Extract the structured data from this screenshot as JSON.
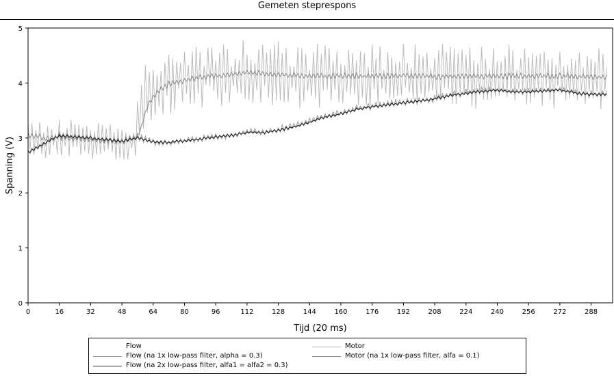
{
  "window": {
    "title": "Gemeten steprespons"
  },
  "chart_data": {
    "type": "line",
    "title": "Gemeten steprespons",
    "xlabel": "Tijd (20 ms)",
    "ylabel": "Spanning (V)",
    "xlim": [
      0,
      299
    ],
    "ylim": [
      0,
      5
    ],
    "xticks": [
      0,
      16,
      32,
      48,
      64,
      80,
      96,
      112,
      128,
      144,
      160,
      176,
      192,
      208,
      224,
      240,
      256,
      272,
      288
    ],
    "yticks": [
      0,
      1,
      2,
      3,
      4,
      5
    ],
    "grid": false,
    "legend_position": "bottom",
    "series": [
      {
        "name": "Flow",
        "color": "#ffffff",
        "stroke_width": 1,
        "x": [
          0,
          297
        ],
        "y": [
          3.0,
          3.0
        ]
      },
      {
        "name": "Flow (na 1x low-pass filter, alpha = 0.3)",
        "color": "#999999",
        "stroke_width": 1,
        "x": [
          0,
          8,
          16,
          24,
          32,
          40,
          48,
          56,
          64,
          72,
          80,
          88,
          96,
          104,
          112,
          120,
          128,
          136,
          144,
          152,
          160,
          168,
          176,
          184,
          192,
          200,
          208,
          216,
          224,
          232,
          240,
          248,
          256,
          264,
          272,
          280,
          288,
          296
        ],
        "y": [
          2.72,
          2.88,
          3.05,
          3.02,
          3.0,
          2.97,
          2.95,
          3.02,
          2.93,
          2.9,
          2.95,
          2.98,
          3.02,
          3.05,
          3.12,
          3.1,
          3.15,
          3.22,
          3.3,
          3.4,
          3.45,
          3.55,
          3.58,
          3.62,
          3.65,
          3.68,
          3.72,
          3.78,
          3.82,
          3.86,
          3.88,
          3.83,
          3.85,
          3.87,
          3.88,
          3.82,
          3.8,
          3.8
        ],
        "noise": 0.05
      },
      {
        "name": "Flow (na 2x low-pass filter, alfa1 = alfa2 = 0.3)",
        "color": "#222222",
        "stroke_width": 1.2,
        "x": [
          0,
          8,
          16,
          24,
          32,
          40,
          48,
          56,
          64,
          72,
          80,
          88,
          96,
          104,
          112,
          120,
          128,
          136,
          144,
          152,
          160,
          168,
          176,
          184,
          192,
          200,
          208,
          216,
          224,
          232,
          240,
          248,
          256,
          264,
          272,
          280,
          288,
          296
        ],
        "y": [
          2.73,
          2.9,
          3.04,
          3.02,
          3.0,
          2.97,
          2.94,
          3.0,
          2.93,
          2.92,
          2.95,
          2.98,
          3.02,
          3.05,
          3.1,
          3.1,
          3.14,
          3.2,
          3.28,
          3.38,
          3.44,
          3.52,
          3.57,
          3.6,
          3.64,
          3.67,
          3.71,
          3.77,
          3.81,
          3.85,
          3.87,
          3.84,
          3.84,
          3.86,
          3.87,
          3.82,
          3.79,
          3.79
        ],
        "noise": 0.02
      },
      {
        "name": "Motor",
        "color": "#bbbbbb",
        "stroke_width": 1,
        "x": [
          0,
          8,
          16,
          24,
          32,
          40,
          48,
          55,
          58,
          62,
          70,
          80,
          96,
          112,
          128,
          144,
          160,
          176,
          192,
          208,
          224,
          240,
          256,
          272,
          288,
          296
        ],
        "y": [
          3.0,
          2.95,
          2.98,
          3.0,
          2.95,
          2.95,
          2.95,
          2.9,
          3.6,
          3.85,
          4.0,
          4.1,
          4.15,
          4.18,
          4.15,
          4.1,
          4.12,
          4.1,
          4.12,
          4.1,
          4.08,
          4.12,
          4.1,
          4.12,
          4.1,
          4.1
        ],
        "noise": 0.45
      },
      {
        "name": "Motor (na 1x low-pass filter, alfa = 0.1)",
        "color": "#888888",
        "stroke_width": 1,
        "x": [
          0,
          8,
          16,
          24,
          32,
          40,
          48,
          52,
          56,
          58,
          60,
          62,
          64,
          68,
          72,
          80,
          88,
          96,
          104,
          112,
          120,
          128,
          144,
          160,
          176,
          192,
          208,
          224,
          240,
          256,
          272,
          288,
          296
        ],
        "y": [
          3.05,
          3.0,
          3.0,
          2.98,
          2.96,
          2.95,
          2.93,
          2.98,
          3.02,
          3.2,
          3.45,
          3.65,
          3.75,
          3.88,
          3.98,
          4.05,
          4.1,
          4.13,
          4.15,
          4.2,
          4.18,
          4.15,
          4.12,
          4.13,
          4.12,
          4.13,
          4.12,
          4.12,
          4.13,
          4.12,
          4.13,
          4.12,
          4.1
        ],
        "noise": 0.04
      }
    ]
  }
}
